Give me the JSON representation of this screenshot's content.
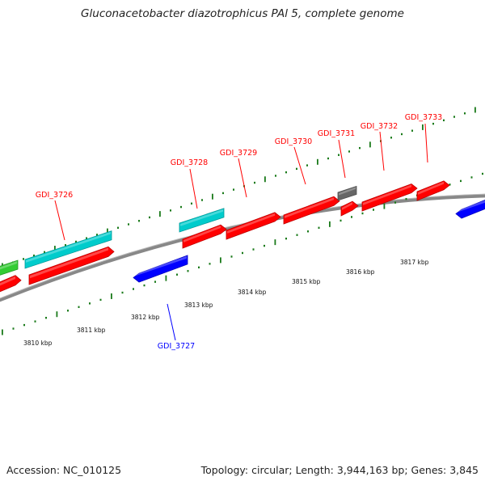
{
  "title": "Gluconacetobacter diazotrophicus PAl 5, complete genome",
  "footer": {
    "accession": "Accession: NC_010125",
    "summary": "Topology: circular; Length: 3,944,163 bp; Genes: 3,845"
  },
  "colors": {
    "forward_cds": "#ff0000",
    "reverse_cds": "#0000ff",
    "rna": "#00cccc",
    "other": "#33cc33",
    "pseudo": "#666666",
    "tick": "#1a7a1a",
    "backbone": "#888888"
  },
  "position_ticks": [
    "3810 kbp",
    "3811 kbp",
    "3812 kbp",
    "3813 kbp",
    "3814 kbp",
    "3815 kbp",
    "3816 kbp",
    "3817 kbp"
  ],
  "gene_labels": [
    {
      "name": "GDI_3726",
      "strand": "forward"
    },
    {
      "name": "GDI_3727",
      "strand": "reverse"
    },
    {
      "name": "GDI_3728",
      "strand": "forward"
    },
    {
      "name": "GDI_3729",
      "strand": "forward"
    },
    {
      "name": "GDI_3730",
      "strand": "forward"
    },
    {
      "name": "GDI_3731",
      "strand": "forward"
    },
    {
      "name": "GDI_3732",
      "strand": "forward"
    },
    {
      "name": "GDI_3733",
      "strand": "forward"
    }
  ]
}
